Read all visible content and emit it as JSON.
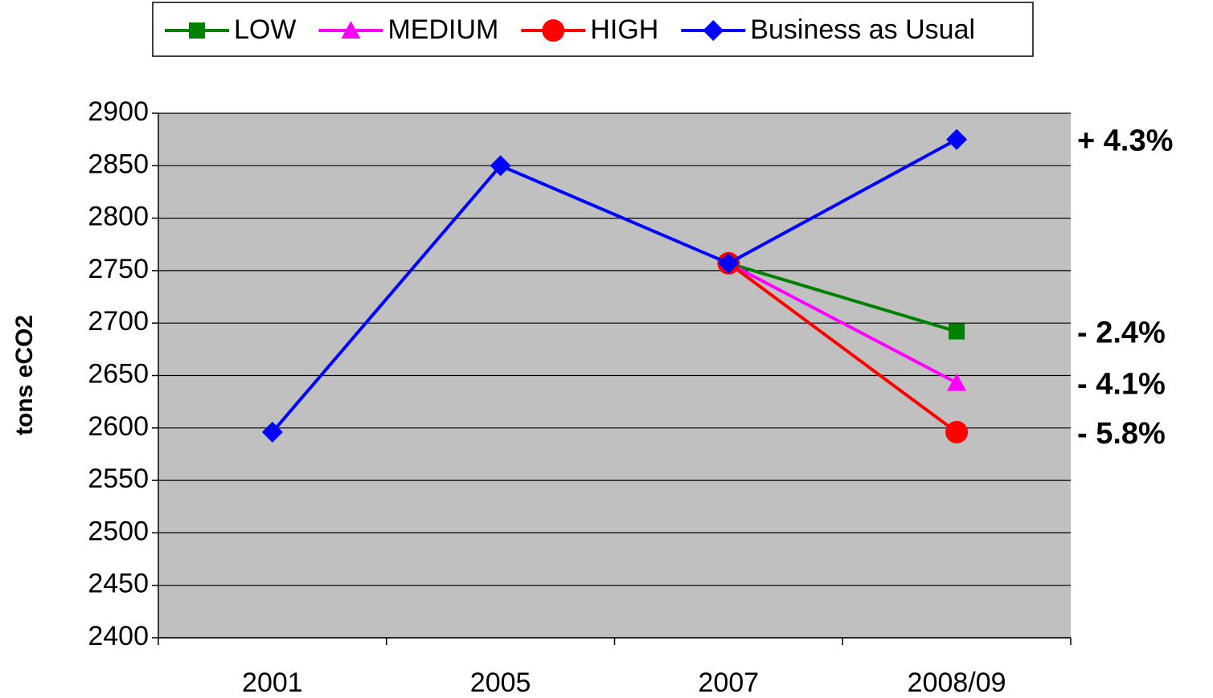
{
  "chart_data": {
    "type": "line",
    "categories": [
      "2001",
      "2005",
      "2007",
      "2008/09"
    ],
    "series": [
      {
        "name": "LOW",
        "color": "#008000",
        "marker": "square",
        "values": [
          null,
          null,
          2757,
          2692
        ]
      },
      {
        "name": "MEDIUM",
        "color": "#ff00ff",
        "marker": "triangle",
        "values": [
          null,
          null,
          2757,
          2643
        ]
      },
      {
        "name": "HIGH",
        "color": "#ff0000",
        "marker": "circle",
        "values": [
          null,
          null,
          2757,
          2596
        ]
      },
      {
        "name": "Business as Usual",
        "color": "#0000ff",
        "marker": "diamond",
        "values": [
          2596,
          2850,
          2757,
          2875
        ]
      }
    ],
    "ylabel": "tons eCO2",
    "ylim": [
      2400,
      2900
    ],
    "yticks": [
      2400,
      2450,
      2500,
      2550,
      2600,
      2650,
      2700,
      2750,
      2800,
      2850,
      2900
    ],
    "grid": true,
    "legend": "top",
    "annotations": [
      {
        "text": "+ 4.3%",
        "color": "#0000ff"
      },
      {
        "text": "- 2.4%",
        "color": "#008000"
      },
      {
        "text": "- 4.1%",
        "color": "#ff00ff"
      },
      {
        "text": "- 5.8%",
        "color": "#ff0000"
      }
    ]
  }
}
